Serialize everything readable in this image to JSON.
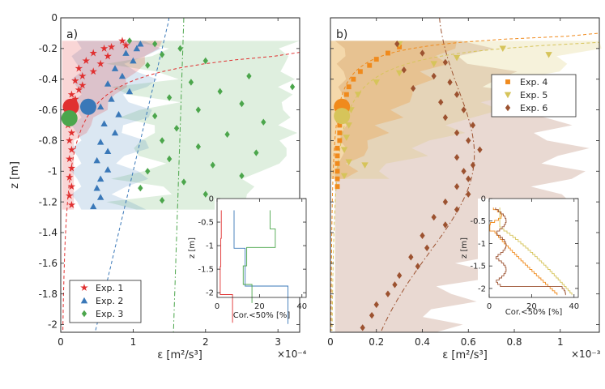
{
  "chart_data": [
    {
      "type": "scatter",
      "panel_label": "a)",
      "xlabel": "ε [m²/s³]",
      "ylabel": "z [m]",
      "x_multiplier": "×10⁻⁴",
      "xlim": [
        0,
        3.3
      ],
      "ylim": [
        -2.05,
        0
      ],
      "x_ticks": [
        "0",
        "1",
        "2",
        "3"
      ],
      "y_ticks": [
        "0",
        "-0.2",
        "-0.4",
        "-0.6",
        "-0.8",
        "-1",
        "-1.2",
        "-1.4",
        "-1.6",
        "-1.8",
        "-2"
      ],
      "legend_position": "bottom-left",
      "series": [
        {
          "name": "Exp. 1",
          "marker": "star",
          "color": "#e03030",
          "points": [
            [
              0.85,
              -0.15
            ],
            [
              0.9,
              -0.18
            ],
            [
              0.7,
              -0.19
            ],
            [
              0.6,
              -0.2
            ],
            [
              0.45,
              -0.23
            ],
            [
              0.65,
              -0.25
            ],
            [
              0.35,
              -0.28
            ],
            [
              0.55,
              -0.3
            ],
            [
              0.25,
              -0.33
            ],
            [
              0.45,
              -0.35
            ],
            [
              0.3,
              -0.38
            ],
            [
              0.2,
              -0.41
            ],
            [
              0.3,
              -0.44
            ],
            [
              0.25,
              -0.47
            ],
            [
              0.15,
              -0.5
            ],
            [
              0.2,
              -0.53
            ],
            [
              0.15,
              -0.56
            ],
            [
              0.12,
              -0.6
            ],
            [
              0.15,
              -0.65
            ],
            [
              0.1,
              -0.7
            ],
            [
              0.15,
              -0.75
            ],
            [
              0.12,
              -0.8
            ],
            [
              0.15,
              -0.86
            ],
            [
              0.12,
              -0.92
            ],
            [
              0.15,
              -0.98
            ],
            [
              0.12,
              -1.04
            ],
            [
              0.15,
              -1.1
            ],
            [
              0.12,
              -1.16
            ],
            [
              0.15,
              -1.22
            ]
          ]
        },
        {
          "name": "Exp. 2",
          "marker": "triangle",
          "color": "#3a78b8",
          "points": [
            [
              1.1,
              -0.17
            ],
            [
              1.05,
              -0.2
            ],
            [
              0.9,
              -0.23
            ],
            [
              1.0,
              -0.28
            ],
            [
              0.75,
              -0.33
            ],
            [
              0.85,
              -0.38
            ],
            [
              0.65,
              -0.43
            ],
            [
              0.95,
              -0.48
            ],
            [
              0.7,
              -0.53
            ],
            [
              0.55,
              -0.58
            ],
            [
              0.8,
              -0.63
            ],
            [
              0.6,
              -0.69
            ],
            [
              0.75,
              -0.75
            ],
            [
              0.55,
              -0.81
            ],
            [
              0.65,
              -0.87
            ],
            [
              0.5,
              -0.93
            ],
            [
              0.65,
              -0.99
            ],
            [
              0.55,
              -1.05
            ],
            [
              0.5,
              -1.11
            ],
            [
              0.55,
              -1.17
            ],
            [
              0.45,
              -1.23
            ]
          ]
        },
        {
          "name": "Exp. 3",
          "marker": "diamond",
          "color": "#4ca64c",
          "points": [
            [
              0.95,
              -0.15
            ],
            [
              1.3,
              -0.17
            ],
            [
              1.65,
              -0.2
            ],
            [
              1.4,
              -0.24
            ],
            [
              2.0,
              -0.28
            ],
            [
              1.2,
              -0.31
            ],
            [
              2.6,
              -0.38
            ],
            [
              1.8,
              -0.42
            ],
            [
              3.2,
              -0.45
            ],
            [
              2.2,
              -0.48
            ],
            [
              1.5,
              -0.52
            ],
            [
              2.5,
              -0.56
            ],
            [
              1.9,
              -0.6
            ],
            [
              1.3,
              -0.64
            ],
            [
              2.8,
              -0.68
            ],
            [
              1.6,
              -0.72
            ],
            [
              2.3,
              -0.76
            ],
            [
              1.4,
              -0.8
            ],
            [
              1.9,
              -0.84
            ],
            [
              2.7,
              -0.88
            ],
            [
              1.5,
              -0.92
            ],
            [
              2.1,
              -0.96
            ],
            [
              1.2,
              -1.0
            ],
            [
              2.5,
              -1.03
            ],
            [
              1.7,
              -1.07
            ],
            [
              1.1,
              -1.11
            ],
            [
              2.0,
              -1.15
            ],
            [
              1.4,
              -1.19
            ],
            [
              2.2,
              -1.23
            ]
          ]
        }
      ],
      "inset": {
        "xlabel": "Cor.<50% [%]",
        "ylabel": "z [m]",
        "xlim": [
          0,
          42
        ],
        "ylim": [
          -2.1,
          0
        ],
        "x_ticks": [
          "0",
          "20",
          "40"
        ],
        "y_ticks": [
          "0",
          "-0.5",
          "-1",
          "-1.5",
          "-2"
        ]
      }
    },
    {
      "type": "scatter",
      "panel_label": "b)",
      "xlabel": "ε [m²/s³]",
      "ylabel": "",
      "x_multiplier": "×10⁻³",
      "xlim": [
        0,
        1.17
      ],
      "ylim": [
        -2.05,
        0
      ],
      "x_ticks": [
        "0",
        "0.2",
        "0.4",
        "0.6",
        "0.8",
        "1"
      ],
      "legend_position": "top-right",
      "series": [
        {
          "name": "Exp. 4",
          "marker": "square",
          "color": "#f08a1c",
          "points": [
            [
              0.3,
              -0.19
            ],
            [
              0.25,
              -0.23
            ],
            [
              0.2,
              -0.27
            ],
            [
              0.17,
              -0.31
            ],
            [
              0.13,
              -0.35
            ],
            [
              0.1,
              -0.4
            ],
            [
              0.08,
              -0.45
            ],
            [
              0.07,
              -0.5
            ],
            [
              0.06,
              -0.55
            ],
            [
              0.05,
              -0.6
            ],
            [
              0.05,
              -0.65
            ],
            [
              0.04,
              -0.7
            ],
            [
              0.04,
              -0.75
            ],
            [
              0.04,
              -0.8
            ],
            [
              0.03,
              -0.85
            ],
            [
              0.03,
              -0.9
            ],
            [
              0.03,
              -0.95
            ],
            [
              0.03,
              -1.0
            ],
            [
              0.03,
              -1.05
            ],
            [
              0.03,
              -1.1
            ]
          ]
        },
        {
          "name": "Exp. 5",
          "marker": "triangle-down",
          "color": "#d6c45a",
          "points": [
            [
              0.3,
              -0.17
            ],
            [
              0.75,
              -0.2
            ],
            [
              0.95,
              -0.24
            ],
            [
              0.55,
              -0.26
            ],
            [
              0.45,
              -0.3
            ],
            [
              0.3,
              -0.36
            ],
            [
              0.2,
              -0.42
            ],
            [
              0.12,
              -0.5
            ],
            [
              0.09,
              -0.6
            ],
            [
              0.08,
              -0.7
            ],
            [
              0.07,
              -0.78
            ],
            [
              0.06,
              -0.86
            ],
            [
              0.08,
              -0.94
            ],
            [
              0.15,
              -0.96
            ],
            [
              0.06,
              -1.03
            ]
          ]
        },
        {
          "name": "Exp. 6",
          "marker": "diamond",
          "color": "#9c5230",
          "points": [
            [
              0.29,
              -0.17
            ],
            [
              0.4,
              -0.23
            ],
            [
              0.5,
              -0.29
            ],
            [
              0.32,
              -0.34
            ],
            [
              0.45,
              -0.38
            ],
            [
              0.52,
              -0.42
            ],
            [
              0.36,
              -0.46
            ],
            [
              0.55,
              -0.5
            ],
            [
              0.48,
              -0.55
            ],
            [
              0.58,
              -0.6
            ],
            [
              0.5,
              -0.65
            ],
            [
              0.62,
              -0.7
            ],
            [
              0.55,
              -0.75
            ],
            [
              0.6,
              -0.8
            ],
            [
              0.65,
              -0.86
            ],
            [
              0.55,
              -0.91
            ],
            [
              0.62,
              -0.96
            ],
            [
              0.58,
              -1.0
            ],
            [
              0.6,
              -1.05
            ],
            [
              0.55,
              -1.1
            ],
            [
              0.6,
              -1.15
            ],
            [
              0.5,
              -1.2
            ],
            [
              0.55,
              -1.25
            ],
            [
              0.45,
              -1.3
            ],
            [
              0.5,
              -1.35
            ],
            [
              0.4,
              -1.42
            ],
            [
              0.42,
              -1.5
            ],
            [
              0.35,
              -1.56
            ],
            [
              0.38,
              -1.62
            ],
            [
              0.3,
              -1.68
            ],
            [
              0.28,
              -1.74
            ],
            [
              0.25,
              -1.8
            ],
            [
              0.2,
              -1.87
            ],
            [
              0.18,
              -1.94
            ],
            [
              0.14,
              -2.02
            ]
          ]
        }
      ],
      "inset": {
        "xlabel": "Cor.<50% [%]",
        "ylabel": "z [m]",
        "xlim": [
          0,
          42
        ],
        "ylim": [
          -2.2,
          0
        ],
        "x_ticks": [
          "0",
          "20",
          "40"
        ],
        "y_ticks": [
          "0",
          "-0.5",
          "-1",
          "-1.5",
          "-2"
        ]
      }
    }
  ]
}
